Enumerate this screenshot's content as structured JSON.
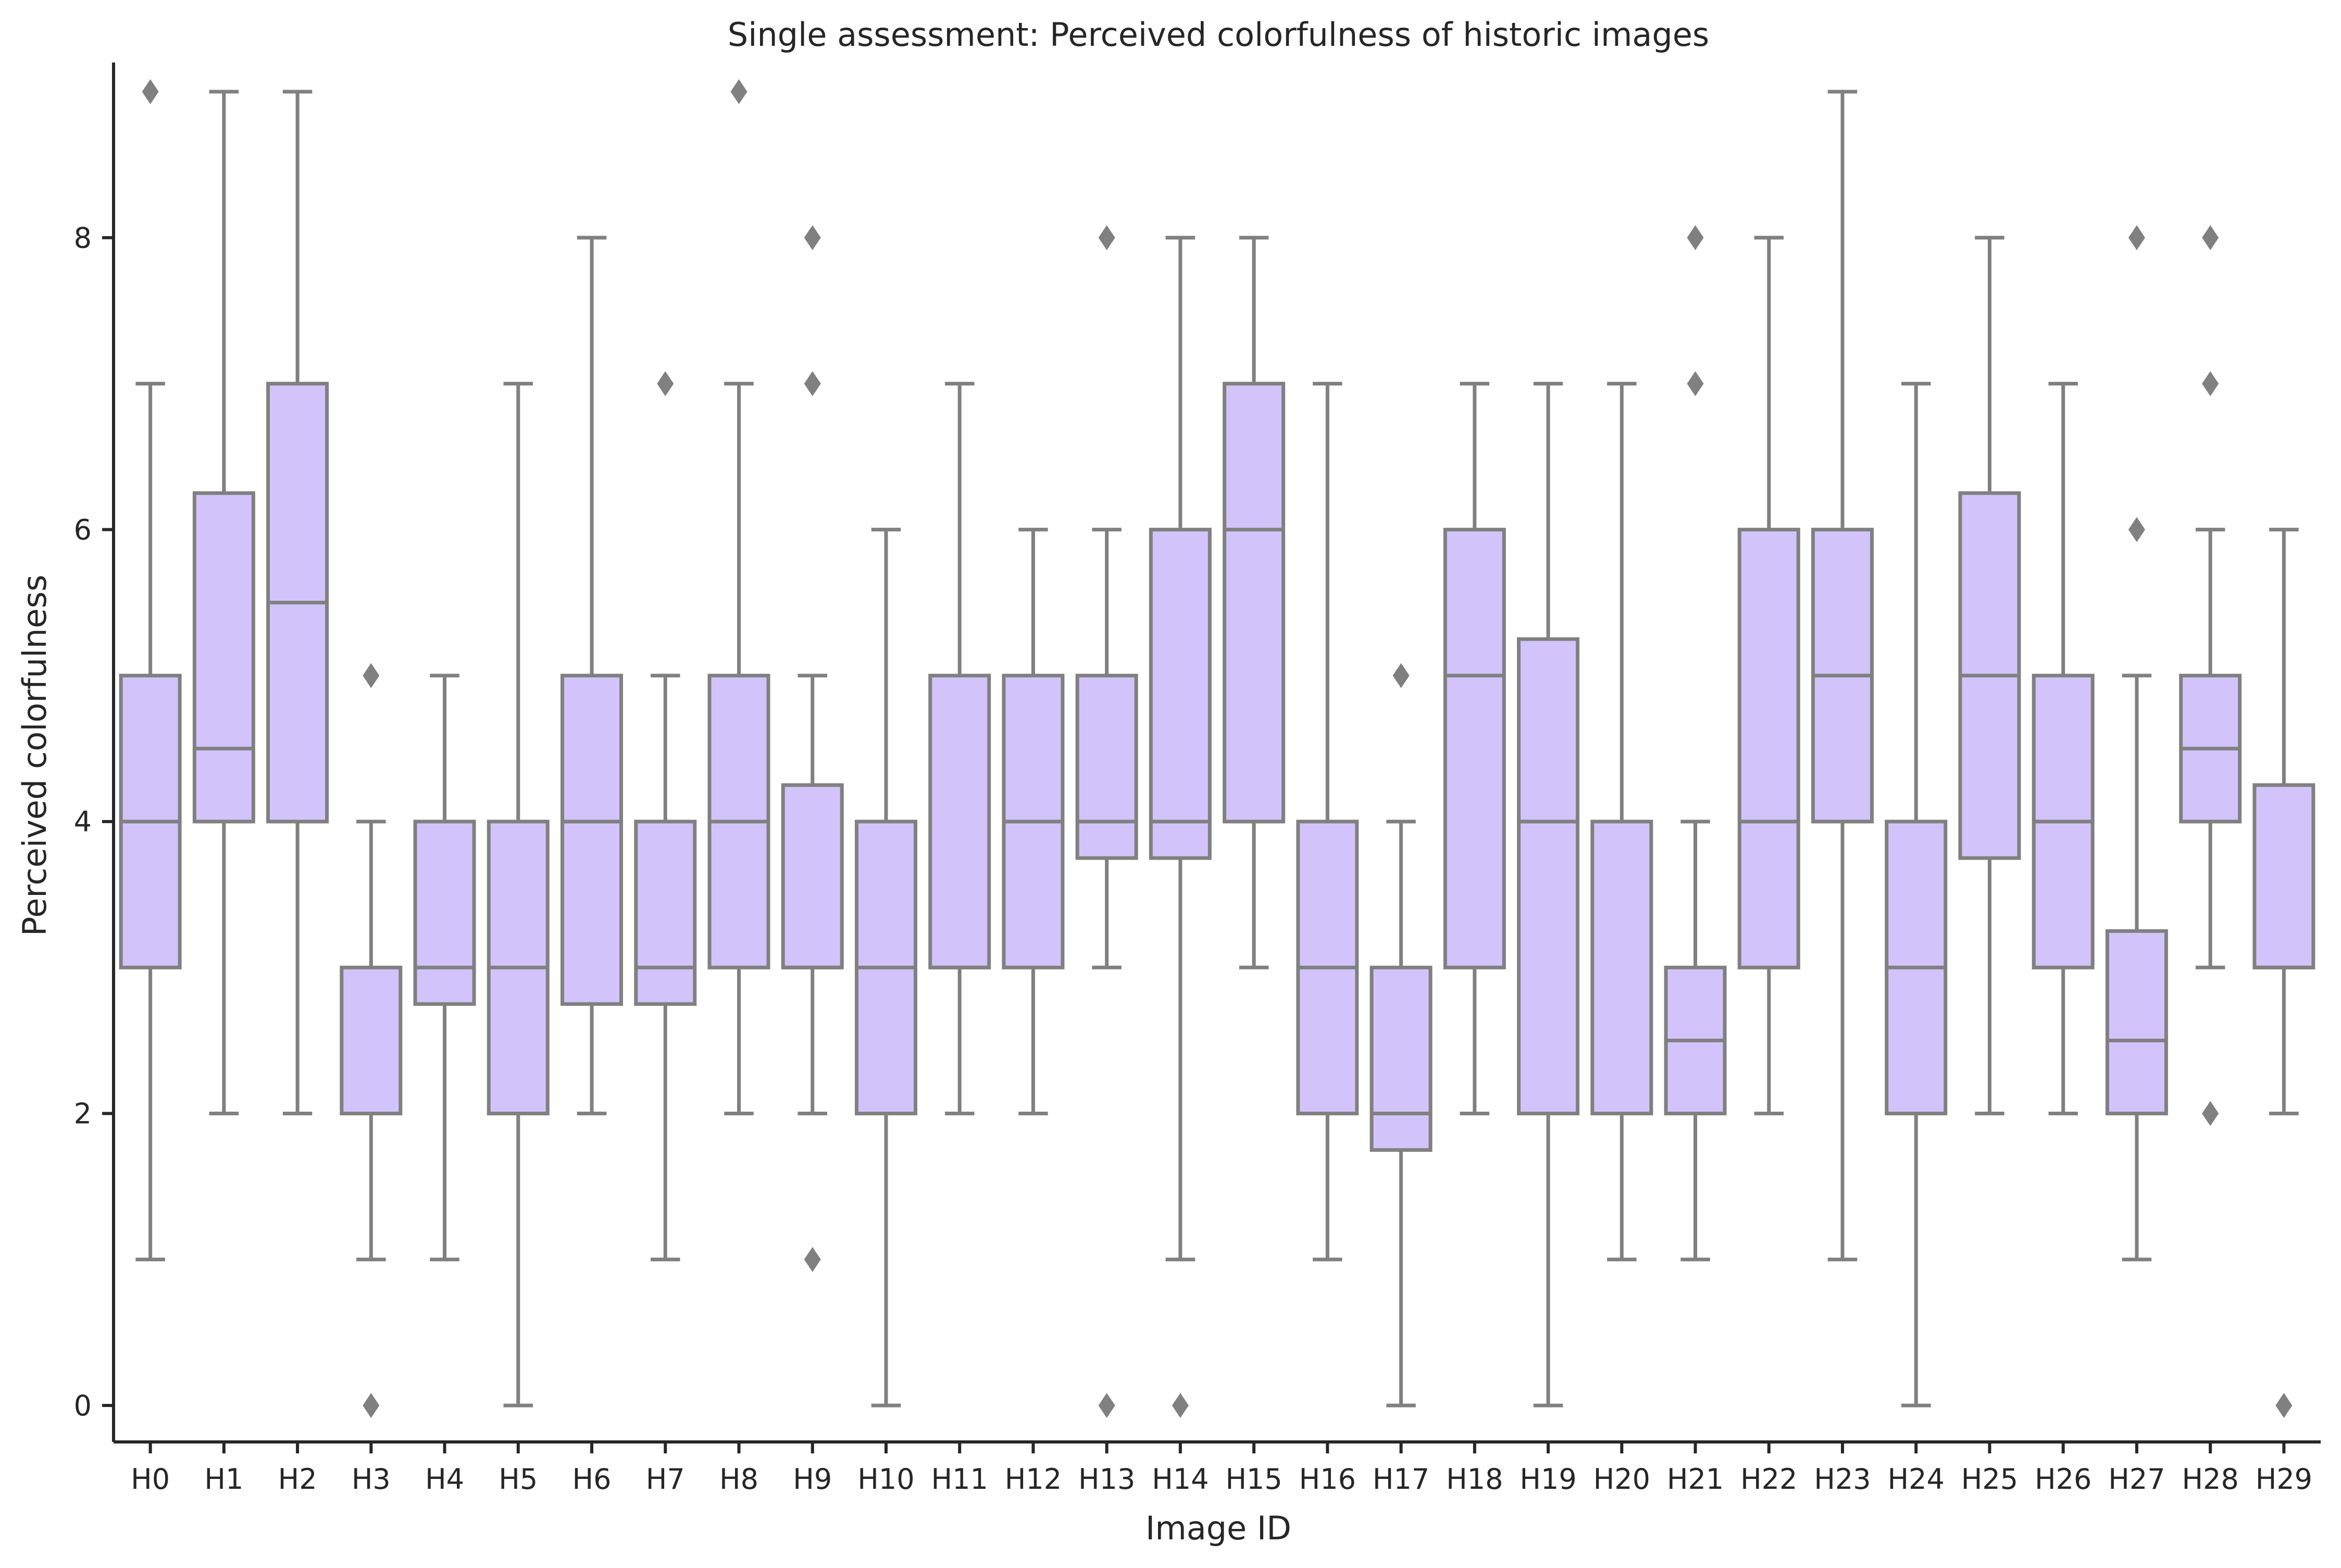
{
  "chart_data": {
    "type": "box",
    "title": "Single assessment: Perceived colorfulness of historic images",
    "xlabel": "Image ID",
    "ylabel": "Perceived colorfulness",
    "ylim": [
      -0.25,
      9.2
    ],
    "yticks": [
      0,
      2,
      4,
      6,
      8
    ],
    "grid": false,
    "box_color": "#d2c4fa",
    "line_color": "#808080",
    "axis_color": "#262626",
    "categories": [
      "H0",
      "H1",
      "H2",
      "H3",
      "H4",
      "H5",
      "H6",
      "H7",
      "H8",
      "H9",
      "H10",
      "H11",
      "H12",
      "H13",
      "H14",
      "H15",
      "H16",
      "H17",
      "H18",
      "H19",
      "H20",
      "H21",
      "H22",
      "H23",
      "H24",
      "H25",
      "H26",
      "H27",
      "H28",
      "H29"
    ],
    "boxes": [
      {
        "label": "H0",
        "whislo": 1,
        "q1": 3,
        "med": 4,
        "q3": 5,
        "whishi": 7,
        "fliers": [
          9
        ]
      },
      {
        "label": "H1",
        "whislo": 2,
        "q1": 4,
        "med": 4.5,
        "q3": 6.25,
        "whishi": 9,
        "fliers": []
      },
      {
        "label": "H2",
        "whislo": 2,
        "q1": 4,
        "med": 5.5,
        "q3": 7,
        "whishi": 9,
        "fliers": []
      },
      {
        "label": "H3",
        "whislo": 1,
        "q1": 2,
        "med": 2,
        "q3": 3,
        "whishi": 4,
        "fliers": [
          5,
          0
        ]
      },
      {
        "label": "H4",
        "whislo": 1,
        "q1": 2.75,
        "med": 3,
        "q3": 4,
        "whishi": 5,
        "fliers": []
      },
      {
        "label": "H5",
        "whislo": 0,
        "q1": 2,
        "med": 3,
        "q3": 4,
        "whishi": 7,
        "fliers": []
      },
      {
        "label": "H6",
        "whislo": 2,
        "q1": 2.75,
        "med": 4,
        "q3": 5,
        "whishi": 8,
        "fliers": []
      },
      {
        "label": "H7",
        "whislo": 1,
        "q1": 2.75,
        "med": 3,
        "q3": 4,
        "whishi": 5,
        "fliers": [
          7
        ]
      },
      {
        "label": "H8",
        "whislo": 2,
        "q1": 3,
        "med": 4,
        "q3": 5,
        "whishi": 7,
        "fliers": [
          9
        ]
      },
      {
        "label": "H9",
        "whislo": 2,
        "q1": 3,
        "med": 3,
        "q3": 4.25,
        "whishi": 5,
        "fliers": [
          8,
          7,
          1
        ]
      },
      {
        "label": "H10",
        "whislo": 0,
        "q1": 2,
        "med": 3,
        "q3": 4,
        "whishi": 6,
        "fliers": []
      },
      {
        "label": "H11",
        "whislo": 2,
        "q1": 3,
        "med": 3,
        "q3": 5,
        "whishi": 7,
        "fliers": []
      },
      {
        "label": "H12",
        "whislo": 2,
        "q1": 3,
        "med": 4,
        "q3": 5,
        "whishi": 6,
        "fliers": []
      },
      {
        "label": "H13",
        "whislo": 3,
        "q1": 3.75,
        "med": 4,
        "q3": 5,
        "whishi": 6,
        "fliers": [
          8,
          0
        ]
      },
      {
        "label": "H14",
        "whislo": 1,
        "q1": 3.75,
        "med": 4,
        "q3": 6,
        "whishi": 8,
        "fliers": [
          0
        ]
      },
      {
        "label": "H15",
        "whislo": 3,
        "q1": 4,
        "med": 6,
        "q3": 7,
        "whishi": 8,
        "fliers": []
      },
      {
        "label": "H16",
        "whislo": 1,
        "q1": 2,
        "med": 3,
        "q3": 4,
        "whishi": 7,
        "fliers": []
      },
      {
        "label": "H17",
        "whislo": 0,
        "q1": 1.75,
        "med": 2,
        "q3": 3,
        "whishi": 4,
        "fliers": [
          5
        ]
      },
      {
        "label": "H18",
        "whislo": 2,
        "q1": 3,
        "med": 5,
        "q3": 6,
        "whishi": 7,
        "fliers": []
      },
      {
        "label": "H19",
        "whislo": 0,
        "q1": 2,
        "med": 4,
        "q3": 5.25,
        "whishi": 7,
        "fliers": []
      },
      {
        "label": "H20",
        "whislo": 1,
        "q1": 2,
        "med": 2,
        "q3": 4,
        "whishi": 7,
        "fliers": []
      },
      {
        "label": "H21",
        "whislo": 1,
        "q1": 2,
        "med": 2.5,
        "q3": 3,
        "whishi": 4,
        "fliers": [
          8,
          7
        ]
      },
      {
        "label": "H22",
        "whislo": 2,
        "q1": 3,
        "med": 4,
        "q3": 6,
        "whishi": 8,
        "fliers": []
      },
      {
        "label": "H23",
        "whislo": 1,
        "q1": 4,
        "med": 5,
        "q3": 6,
        "whishi": 9,
        "fliers": []
      },
      {
        "label": "H24",
        "whislo": 0,
        "q1": 2,
        "med": 3,
        "q3": 4,
        "whishi": 7,
        "fliers": []
      },
      {
        "label": "H25",
        "whislo": 2,
        "q1": 3.75,
        "med": 5,
        "q3": 6.25,
        "whishi": 8,
        "fliers": []
      },
      {
        "label": "H26",
        "whislo": 2,
        "q1": 3,
        "med": 4,
        "q3": 5,
        "whishi": 7,
        "fliers": []
      },
      {
        "label": "H27",
        "whislo": 1,
        "q1": 2,
        "med": 2.5,
        "q3": 3.25,
        "whishi": 5,
        "fliers": [
          8,
          6
        ]
      },
      {
        "label": "H28",
        "whislo": 3,
        "q1": 4,
        "med": 4.5,
        "q3": 5,
        "whishi": 6,
        "fliers": [
          8,
          7,
          2
        ]
      },
      {
        "label": "H29",
        "whislo": 2,
        "q1": 3,
        "med": 3,
        "q3": 4.25,
        "whishi": 6,
        "fliers": [
          0
        ]
      }
    ]
  }
}
